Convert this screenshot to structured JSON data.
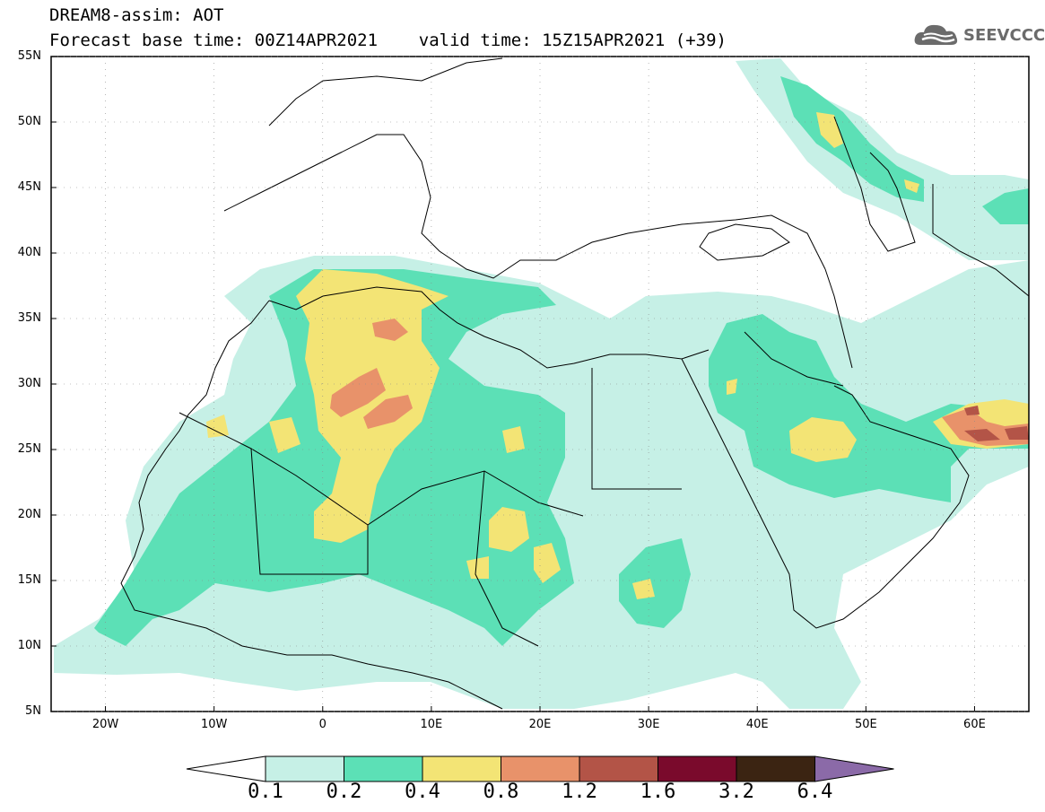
{
  "header": {
    "title_line1": "DREAM8-assim: AOT",
    "title_line2": "Forecast base time: 00Z14APR2021    valid time: 15Z15APR2021 (+39)"
  },
  "logo": {
    "text": "SEEVCCC",
    "icon": "cloud-icon"
  },
  "map": {
    "lat_ticks": [
      "55N",
      "50N",
      "45N",
      "40N",
      "35N",
      "30N",
      "25N",
      "20N",
      "15N",
      "10N",
      "5N"
    ],
    "lon_ticks": [
      "20W",
      "10W",
      "0",
      "10E",
      "20E",
      "30E",
      "40E",
      "50E",
      "60E"
    ],
    "extent": {
      "lon": [
        -25,
        65
      ],
      "lat": [
        5,
        55
      ]
    }
  },
  "colorbar": {
    "labels": [
      "0.1",
      "0.2",
      "0.4",
      "0.8",
      "1.2",
      "1.6",
      "3.2",
      "6.4"
    ],
    "colors": [
      "#ffffff",
      "#c6f0e6",
      "#5ce0b6",
      "#f3e475",
      "#e8926a",
      "#b35447",
      "#7a0a2c",
      "#3b2412",
      "#8b6aa8"
    ]
  },
  "fields": {
    "level_colors": [
      "#c6f0e6",
      "#5ce0b6",
      "#f3e475",
      "#e8926a",
      "#b35447"
    ]
  }
}
